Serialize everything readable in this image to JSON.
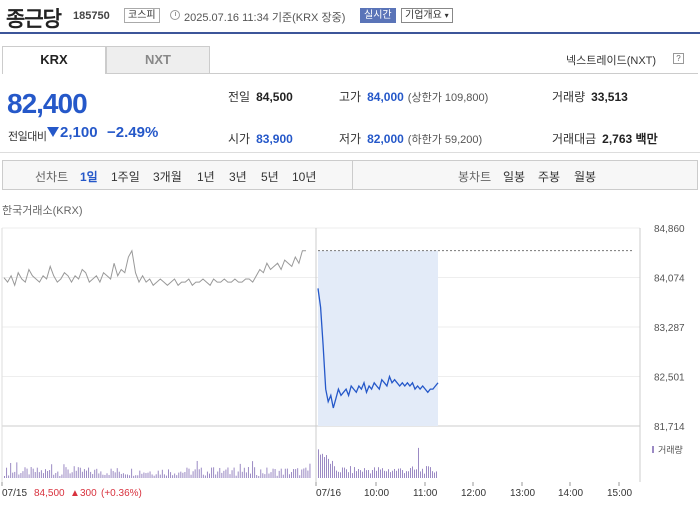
{
  "header": {
    "name": "종근당",
    "code": "185750",
    "market": "코스피",
    "datetime": "2025.07.16 11:34 기준(KRX 장중)",
    "live": "실시간",
    "company_info": "기업개요"
  },
  "tabs": {
    "krx": "KRX",
    "nxt": "NXT"
  },
  "nxt_trade": "넥스트레이드(NXT)",
  "price": {
    "current": "82,400",
    "change_label": "전일대비",
    "change_amount": "2,100",
    "change_percent": "−2.49%"
  },
  "stats": {
    "prev_close": {
      "label": "전일",
      "value": "84,500"
    },
    "high": {
      "label": "고가",
      "value": "84,000",
      "sub": "(상한가 109,800)"
    },
    "volume": {
      "label": "거래량",
      "value": "33,513"
    },
    "open": {
      "label": "시가",
      "value": "83,900"
    },
    "low": {
      "label": "저가",
      "value": "82,000",
      "sub": "(하한가 59,200)"
    },
    "amount": {
      "label": "거래대금",
      "value": "2,763 백만"
    }
  },
  "periodbar": {
    "line_label": "선차트",
    "periods": [
      "1일",
      "1주일",
      "3개월",
      "1년",
      "3년",
      "5년",
      "10년"
    ],
    "active": "1일",
    "candle_label": "봉차트",
    "candle_periods": [
      "일봉",
      "주봉",
      "월봉"
    ]
  },
  "chart_title": "한국거래소(KRX)",
  "colors": {
    "blue": "#2558c9",
    "red": "#d8323e",
    "area": "#e3ebf8",
    "volume": "#9b8ac4",
    "gray": "#999999"
  },
  "chart_data": {
    "type": "line",
    "y_ticks": [
      "84,860",
      "84,074",
      "83,287",
      "82,501",
      "81,714"
    ],
    "ylim": [
      81714,
      84860
    ],
    "x_labels": [
      "07/15",
      "07/16",
      "10:00",
      "11:00",
      "12:00",
      "13:00",
      "14:00",
      "15:00"
    ],
    "volume_legend": "거래량",
    "prev_day_summary": {
      "date": "07/15",
      "close": "84,500",
      "change": "300",
      "change_pct": "(+0.36%)"
    },
    "prev_day_series": [
      84070,
      84000,
      84100,
      83950,
      84150,
      84050,
      84000,
      84200,
      84100,
      84050,
      84000,
      84100,
      84050,
      84250,
      84100,
      84000,
      84050,
      84150,
      84100,
      84000,
      84100,
      84050,
      84200,
      84150,
      84000,
      84050,
      84100,
      84000,
      84150,
      84100,
      84050,
      84300,
      84100,
      84200,
      84150,
      84400,
      84500,
      84150,
      84000,
      84100,
      84000,
      84050,
      83950,
      84000,
      84050,
      84000,
      83950,
      84000,
      84050,
      83950,
      84000,
      84000,
      84050,
      83950,
      84000,
      84000,
      84050,
      84000,
      83950,
      84050,
      84000,
      84000,
      84050,
      84000,
      84000,
      84050,
      84000,
      84000,
      84050,
      84050,
      84000,
      84100,
      84200,
      84150,
      84300,
      84200,
      84250,
      84300,
      84200,
      84350,
      84300,
      84250,
      84400,
      84300,
      84500,
      84500
    ],
    "today_series": [
      83900,
      83600,
      83000,
      82300,
      82100,
      82200,
      82000,
      82150,
      82300,
      82200,
      82250,
      82300,
      82200,
      82350,
      82300,
      82250,
      82350,
      82300,
      82400,
      82250,
      82350,
      82300,
      82400,
      82350,
      82300,
      82450,
      82400,
      82350,
      82500,
      82400,
      82450,
      82400,
      82350,
      82400,
      82350,
      82400,
      82350,
      82400,
      82300,
      82350,
      82300,
      82350,
      82300,
      82250,
      82300,
      82300,
      82350,
      82400
    ],
    "prev_close_level": 84500
  }
}
